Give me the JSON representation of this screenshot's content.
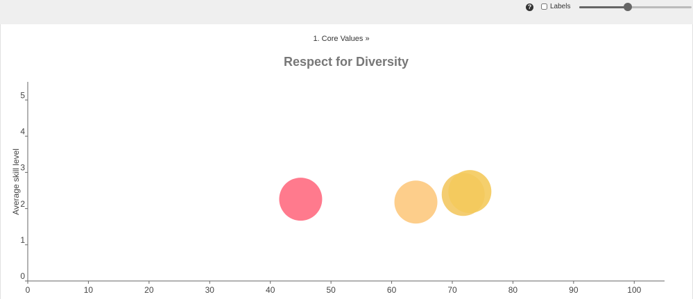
{
  "toolbar": {
    "help": "?",
    "labels": "Labels"
  },
  "breadcrumb": "1. Core Values »",
  "chart_data": {
    "type": "scatter",
    "title": "Respect for Diversity",
    "ylabel": "Average skill level",
    "x": [
      45,
      64,
      71.8,
      72.9
    ],
    "values": [
      2.26,
      2.18,
      2.39,
      2.47
    ],
    "colors": [
      "#ff6b81",
      "#fdc97e",
      "#f3c862",
      "#f4ca5c"
    ],
    "xlim": [
      0,
      105
    ],
    "ylim": [
      0,
      5.5
    ],
    "xticks": [
      0,
      10,
      20,
      30,
      40,
      50,
      60,
      70,
      80,
      90,
      100
    ],
    "yticks": [
      0,
      1,
      2,
      3,
      4,
      5
    ]
  }
}
